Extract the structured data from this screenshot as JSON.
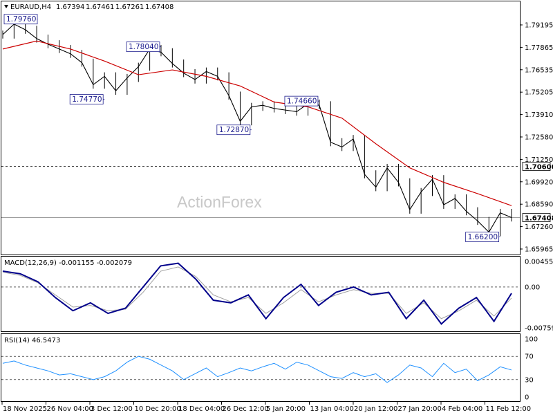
{
  "header": {
    "symbol": "EURAUD,H4",
    "open": "1.67394",
    "high": "1.67461",
    "low": "1.67261",
    "close": "1.67408"
  },
  "watermark": "ActionForex",
  "colors": {
    "price_bars": "#000000",
    "sma": "#cc0000",
    "macd_line": "#00008b",
    "macd_signal": "#a0a0a0",
    "rsi_line": "#1e90ff",
    "level_line": "#000000"
  },
  "chart_data": [
    {
      "type": "line",
      "panel": "price",
      "title": "EURAUD,H4",
      "ylim": [
        1.6545,
        1.8035
      ],
      "y_ticks": [
        "1.79195",
        "1.77865",
        "1.76535",
        "1.75205",
        "1.73910",
        "1.72580",
        "1.71250",
        "1.69920",
        "1.68590",
        "1.67260",
        "1.65965"
      ],
      "x_ticks": [
        "18 Nov 2025",
        "26 Nov 04:00",
        "3 Dec 12:00",
        "10 Dec 20:00",
        "18 Dec 04:00",
        "26 Dec 12:00",
        "5 Jan 20:00",
        "13 Jan 04:00",
        "20 Jan 12:00",
        "27 Jan 20:00",
        "4 Feb 04:00",
        "11 Feb 12:00"
      ],
      "x_range": [
        0,
        45
      ],
      "series": [
        {
          "kind": "close",
          "x": [
            0,
            1,
            2,
            3,
            4,
            5,
            6,
            7,
            8,
            9,
            10,
            11,
            12,
            13,
            14,
            15,
            16,
            17,
            18,
            19,
            20,
            21,
            22,
            23,
            24,
            25,
            26,
            27,
            28,
            29,
            30,
            31,
            32,
            33,
            34,
            35,
            36,
            37,
            38,
            39,
            40,
            41,
            42,
            43,
            44,
            45
          ],
          "values": [
            1.788,
            1.7945,
            1.791,
            1.7855,
            1.782,
            1.779,
            1.776,
            1.7705,
            1.7568,
            1.762,
            1.753,
            1.761,
            1.768,
            1.779,
            1.777,
            1.77,
            1.764,
            1.76,
            1.765,
            1.762,
            1.75,
            1.734,
            1.743,
            1.744,
            1.742,
            1.741,
            1.74,
            1.745,
            1.744,
            1.721,
            1.718,
            1.723,
            1.701,
            1.693,
            1.705,
            1.696,
            1.679,
            1.69,
            1.698,
            1.682,
            1.686,
            1.678,
            1.672,
            1.665,
            1.677,
            1.6741
          ]
        },
        {
          "name": "",
          "kind": "sma",
          "x": [
            0,
            3,
            6,
            9,
            12,
            15,
            18,
            21,
            24,
            27,
            30,
            33,
            36,
            39,
            42,
            45
          ],
          "values": [
            1.779,
            1.784,
            1.779,
            1.7715,
            1.763,
            1.766,
            1.762,
            1.756,
            1.746,
            1.743,
            1.736,
            1.72,
            1.705,
            1.696,
            1.689,
            1.6815
          ]
        }
      ],
      "high_low_labels": [
        {
          "label": "1.79760",
          "x": 3,
          "value": 1.7976
        },
        {
          "label": "1.74770",
          "x": 9,
          "value": 1.7477
        },
        {
          "label": "1.78040",
          "x": 14,
          "value": 1.7804
        },
        {
          "label": "1.72870",
          "x": 22,
          "value": 1.7287
        },
        {
          "label": "1.74660",
          "x": 28,
          "value": 1.7466
        },
        {
          "label": "1.66200",
          "x": 44,
          "value": 1.662
        }
      ],
      "horizontal_levels": [
        {
          "label": "1.70600",
          "value": 1.706,
          "style": "dashed"
        },
        {
          "label": "1.67408",
          "value": 1.67408,
          "style": "solid"
        }
      ]
    },
    {
      "type": "line",
      "panel": "macd",
      "title": "MACD(12,26,9) -0.001155 -0.002079",
      "ylim": [
        -0.008,
        0.0051
      ],
      "y_ticks": [
        "0.004553",
        "0.00",
        "-0.007593"
      ],
      "x_range": [
        0,
        45
      ],
      "series": [
        {
          "kind": "macd",
          "values": [
            0.003,
            0.0025,
            0.001,
            -0.002,
            -0.0045,
            -0.003,
            -0.005,
            -0.004,
            0.0,
            0.004,
            0.0045,
            0.0015,
            -0.0025,
            -0.003,
            -0.0015,
            -0.006,
            -0.002,
            0.0005,
            -0.0035,
            -0.001,
            0.0,
            -0.0015,
            -0.001,
            -0.006,
            -0.0025,
            -0.007,
            -0.004,
            -0.002,
            -0.0065,
            -0.0012
          ]
        },
        {
          "kind": "signal",
          "values": [
            0.0028,
            0.0022,
            0.0008,
            -0.0015,
            -0.0038,
            -0.0035,
            -0.0045,
            -0.0042,
            -0.001,
            0.003,
            0.0038,
            0.002,
            -0.0015,
            -0.0028,
            -0.002,
            -0.005,
            -0.003,
            -0.0005,
            -0.0028,
            -0.0015,
            -0.0005,
            -0.0012,
            -0.0012,
            -0.005,
            -0.003,
            -0.006,
            -0.0045,
            -0.0025,
            -0.0055,
            -0.0021
          ]
        }
      ]
    },
    {
      "type": "line",
      "panel": "rsi",
      "title": "RSI(14) 46.5473",
      "ylim": [
        0,
        100
      ],
      "y_ticks": [
        "100",
        "70",
        "30",
        "0"
      ],
      "levels": [
        70,
        30
      ],
      "x_range": [
        0,
        45
      ],
      "series": [
        {
          "kind": "rsi",
          "values": [
            58,
            62,
            55,
            50,
            45,
            38,
            40,
            35,
            30,
            35,
            45,
            60,
            70,
            65,
            55,
            45,
            30,
            40,
            50,
            35,
            42,
            50,
            45,
            52,
            58,
            48,
            60,
            55,
            45,
            35,
            32,
            42,
            35,
            40,
            25,
            38,
            55,
            50,
            35,
            58,
            42,
            48,
            28,
            38,
            52,
            46.5
          ]
        }
      ]
    }
  ]
}
